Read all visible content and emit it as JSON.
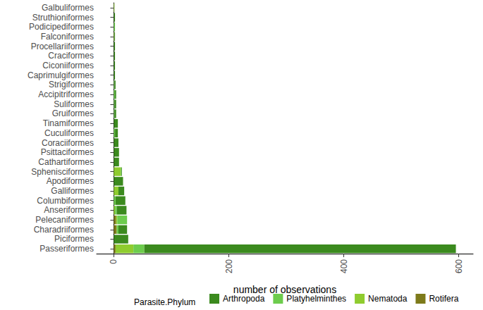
{
  "chart_data": {
    "type": "bar",
    "orientation": "horizontal",
    "stacked": true,
    "grid": false,
    "legend": "bottom",
    "legend_title": "Parasite.Phylum",
    "x_label": "number of observations",
    "xlim": [
      -30,
      625
    ],
    "xticks": [
      0,
      200,
      400,
      600
    ],
    "categories": [
      "Galbuliformes",
      "Struthioniformes",
      "Podicipediformes",
      "Falconiformes",
      "Procellariiformes",
      "Craciformes",
      "Ciconiiformes",
      "Caprimulgiformes",
      "Strigiformes",
      "Accipitriformes",
      "Suliformes",
      "Gruiformes",
      "Tinamiformes",
      "Cuculiformes",
      "Coraciiformes",
      "Psittaciformes",
      "Cathartiformes",
      "Sphenisciformes",
      "Apodiformes",
      "Galliformes",
      "Columbiformes",
      "Anseriformes",
      "Pelecaniformes",
      "Charadriiformes",
      "Piciformes",
      "Passeriformes"
    ],
    "series": [
      {
        "name": "Arthropoda",
        "color": "#3b8a1e",
        "values": [
          0,
          2,
          0,
          1,
          2,
          2,
          2,
          2,
          2,
          2,
          3,
          3,
          7,
          5,
          8,
          9,
          9,
          1,
          16,
          10,
          17,
          17,
          0,
          15,
          25,
          542
        ]
      },
      {
        "name": "Platyhelminthes",
        "color": "#6dcc4d",
        "values": [
          0,
          0,
          2,
          0,
          0,
          0,
          0,
          0,
          1,
          2,
          1,
          1,
          0,
          2,
          0,
          0,
          0,
          1,
          0,
          0,
          3,
          3,
          17,
          3,
          0,
          19
        ]
      },
      {
        "name": "Nematoda",
        "color": "#8fcc2f",
        "values": [
          1,
          0,
          0,
          1,
          0,
          0,
          0,
          0,
          0,
          0,
          0,
          0,
          0,
          0,
          0,
          0,
          0,
          12,
          0,
          8,
          0,
          2,
          2,
          0,
          0,
          31
        ]
      },
      {
        "name": "Rotifera",
        "color": "#7d7a1a",
        "values": [
          0,
          0,
          0,
          0,
          0,
          0,
          0,
          0,
          0,
          0,
          0,
          0,
          0,
          0,
          0,
          0,
          0,
          0,
          0,
          0,
          0,
          0,
          4,
          5,
          0,
          3
        ]
      }
    ]
  }
}
